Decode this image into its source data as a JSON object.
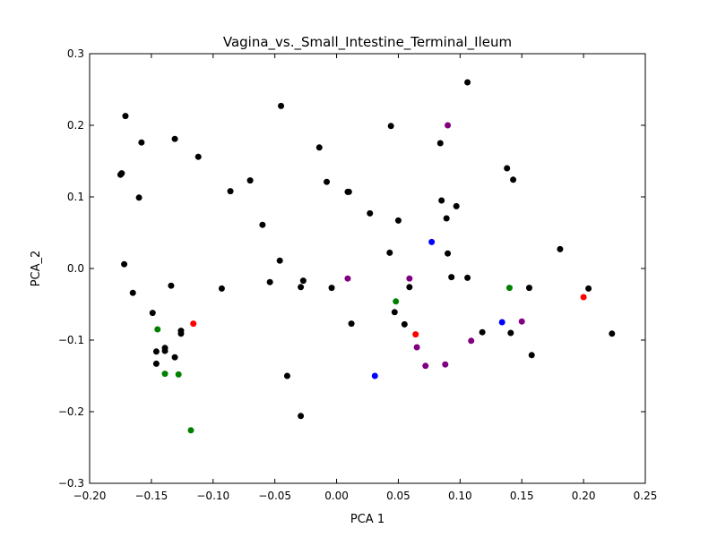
{
  "chart_data": {
    "type": "scatter",
    "title": "Vagina_vs._Small_Intestine_Terminal_Ileum",
    "xlabel": "PCA 1",
    "ylabel": "PCA_2",
    "xlim": [
      -0.2,
      0.25
    ],
    "ylim": [
      -0.3,
      0.3
    ],
    "grid": false,
    "x_ticks": [
      -0.2,
      -0.15,
      -0.1,
      -0.05,
      0.0,
      0.05,
      0.1,
      0.15,
      0.2,
      0.25
    ],
    "x_tick_labels": [
      "−0.20",
      "−0.15",
      "−0.10",
      "−0.05",
      "0.00",
      "0.05",
      "0.10",
      "0.15",
      "0.20",
      "0.25"
    ],
    "y_ticks": [
      -0.3,
      -0.2,
      -0.1,
      0.0,
      0.1,
      0.2,
      0.3
    ],
    "y_tick_labels": [
      "−0.3",
      "−0.2",
      "−0.1",
      "0.0",
      "0.1",
      "0.2",
      "0.3"
    ],
    "series": [
      {
        "color": "#000000",
        "points": [
          [
            -0.175,
            0.131
          ],
          [
            -0.174,
            0.133
          ],
          [
            -0.171,
            0.213
          ],
          [
            -0.158,
            0.176
          ],
          [
            -0.16,
            0.099
          ],
          [
            -0.172,
            0.006
          ],
          [
            -0.165,
            -0.034
          ],
          [
            -0.149,
            -0.062
          ],
          [
            -0.134,
            -0.024
          ],
          [
            -0.131,
            0.181
          ],
          [
            -0.112,
            0.156
          ],
          [
            -0.086,
            0.108
          ],
          [
            -0.07,
            0.123
          ],
          [
            -0.06,
            0.061
          ],
          [
            -0.045,
            0.227
          ],
          [
            -0.014,
            0.169
          ],
          [
            -0.008,
            0.121
          ],
          [
            0.009,
            0.107
          ],
          [
            0.01,
            0.107
          ],
          [
            -0.046,
            0.011
          ],
          [
            -0.054,
            -0.019
          ],
          [
            -0.093,
            -0.028
          ],
          [
            -0.027,
            -0.017
          ],
          [
            -0.029,
            -0.026
          ],
          [
            -0.004,
            -0.027
          ],
          [
            0.012,
            -0.077
          ],
          [
            -0.04,
            -0.15
          ],
          [
            -0.029,
            -0.206
          ],
          [
            -0.146,
            -0.116
          ],
          [
            -0.139,
            -0.111
          ],
          [
            -0.139,
            -0.115
          ],
          [
            -0.126,
            -0.087
          ],
          [
            -0.126,
            -0.091
          ],
          [
            -0.131,
            -0.124
          ],
          [
            -0.146,
            -0.133
          ],
          [
            0.027,
            0.077
          ],
          [
            0.044,
            0.199
          ],
          [
            0.05,
            0.067
          ],
          [
            0.043,
            0.022
          ],
          [
            0.059,
            -0.026
          ],
          [
            0.047,
            -0.061
          ],
          [
            0.055,
            -0.078
          ],
          [
            0.084,
            0.175
          ],
          [
            0.085,
            0.095
          ],
          [
            0.089,
            0.07
          ],
          [
            0.097,
            0.087
          ],
          [
            0.106,
            0.26
          ],
          [
            0.09,
            0.021
          ],
          [
            0.093,
            -0.012
          ],
          [
            0.106,
            -0.013
          ],
          [
            0.118,
            -0.089
          ],
          [
            0.138,
            0.14
          ],
          [
            0.143,
            0.124
          ],
          [
            0.156,
            -0.027
          ],
          [
            0.141,
            -0.09
          ],
          [
            0.158,
            -0.121
          ],
          [
            0.181,
            0.027
          ],
          [
            0.204,
            -0.028
          ],
          [
            0.223,
            -0.091
          ]
        ]
      },
      {
        "color": "#008000",
        "points": [
          [
            -0.145,
            -0.085
          ],
          [
            -0.139,
            -0.147
          ],
          [
            -0.128,
            -0.148
          ],
          [
            -0.118,
            -0.226
          ],
          [
            0.048,
            -0.046
          ],
          [
            0.14,
            -0.027
          ]
        ]
      },
      {
        "color": "#ff0000",
        "points": [
          [
            -0.116,
            -0.077
          ],
          [
            0.064,
            -0.092
          ],
          [
            0.2,
            -0.04
          ]
        ]
      },
      {
        "color": "#0000ff",
        "points": [
          [
            0.077,
            0.037
          ],
          [
            0.031,
            -0.15
          ],
          [
            0.134,
            -0.075
          ]
        ]
      },
      {
        "color": "#800080",
        "points": [
          [
            0.09,
            0.2
          ],
          [
            0.009,
            -0.014
          ],
          [
            0.059,
            -0.014
          ],
          [
            0.065,
            -0.11
          ],
          [
            0.072,
            -0.136
          ],
          [
            0.088,
            -0.134
          ],
          [
            0.109,
            -0.101
          ],
          [
            0.15,
            -0.074
          ]
        ]
      }
    ]
  }
}
